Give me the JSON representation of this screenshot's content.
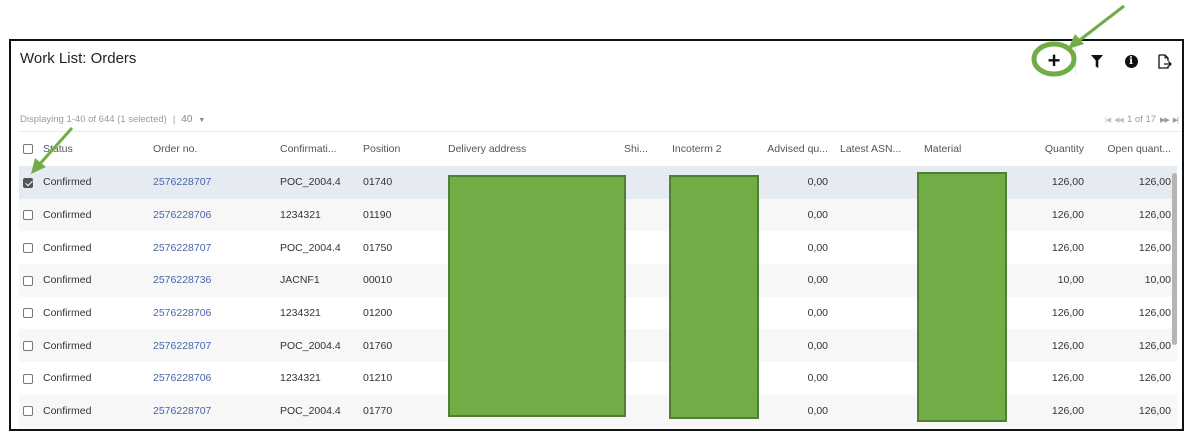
{
  "header": {
    "title": "Work List: Orders",
    "toolbar": [
      {
        "name": "add",
        "icon": "plus-icon",
        "glyph": "+"
      },
      {
        "name": "filter",
        "icon": "filter-icon"
      },
      {
        "name": "info",
        "icon": "info-icon",
        "glyph": "i"
      },
      {
        "name": "export",
        "icon": "export-icon"
      }
    ]
  },
  "status": {
    "display_text": "Displaying 1-40 of 644 (1 selected)",
    "separator": "|",
    "page_size": "40"
  },
  "pager": {
    "text": "1 of 17"
  },
  "table": {
    "columns": [
      "Status",
      "Order no.",
      "Confirmati...",
      "Position",
      "Delivery address",
      "Shi...",
      "Incoterm 2",
      "Advised qu...",
      "Latest ASN...",
      "Material",
      "Quantity",
      "Open quant..."
    ],
    "rows": [
      {
        "selected": true,
        "status": "Confirmed",
        "order_no": "2576228707",
        "confirmation": "POC_2004.4",
        "position": "01740",
        "advised": "0,00",
        "quantity": "126,00",
        "open": "126,00"
      },
      {
        "selected": false,
        "status": "Confirmed",
        "order_no": "2576228706",
        "confirmation": "1234321",
        "position": "01190",
        "advised": "0,00",
        "quantity": "126,00",
        "open": "126,00"
      },
      {
        "selected": false,
        "status": "Confirmed",
        "order_no": "2576228707",
        "confirmation": "POC_2004.4",
        "position": "01750",
        "advised": "0,00",
        "quantity": "126,00",
        "open": "126,00"
      },
      {
        "selected": false,
        "status": "Confirmed",
        "order_no": "2576228736",
        "confirmation": "JACNF1",
        "position": "00010",
        "advised": "0,00",
        "quantity": "10,00",
        "open": "10,00"
      },
      {
        "selected": false,
        "status": "Confirmed",
        "order_no": "2576228706",
        "confirmation": "1234321",
        "position": "01200",
        "advised": "0,00",
        "quantity": "126,00",
        "open": "126,00"
      },
      {
        "selected": false,
        "status": "Confirmed",
        "order_no": "2576228707",
        "confirmation": "POC_2004.4",
        "position": "01760",
        "advised": "0,00",
        "quantity": "126,00",
        "open": "126,00"
      },
      {
        "selected": false,
        "status": "Confirmed",
        "order_no": "2576228706",
        "confirmation": "1234321",
        "position": "01210",
        "advised": "0,00",
        "quantity": "126,00",
        "open": "126,00"
      },
      {
        "selected": false,
        "status": "Confirmed",
        "order_no": "2576228707",
        "confirmation": "POC_2004.4",
        "position": "01770",
        "advised": "0,00",
        "quantity": "126,00",
        "open": "126,00"
      }
    ]
  },
  "colors": {
    "redaction": "#70ad47",
    "annotation": "#70ad47",
    "link": "#4a64a8",
    "selected_row": "#e6ebf2"
  }
}
